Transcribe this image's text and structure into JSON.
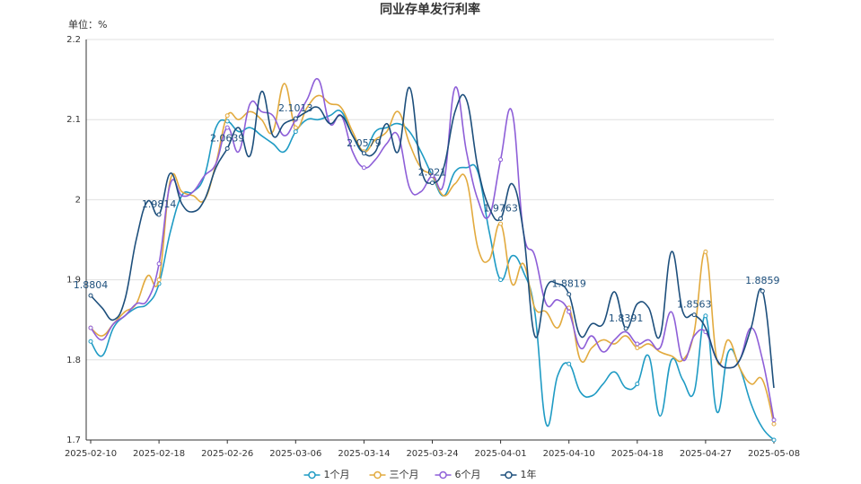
{
  "chart_data": {
    "type": "line",
    "title": "同业存单发行利率",
    "unit_label": "单位：%",
    "categories": [
      "2025-02-10",
      null,
      null,
      null,
      null,
      null,
      "2025-02-18",
      null,
      null,
      null,
      null,
      null,
      "2025-02-26",
      null,
      null,
      null,
      null,
      null,
      "2025-03-06",
      null,
      null,
      null,
      null,
      null,
      "2025-03-14",
      null,
      null,
      null,
      null,
      null,
      "2025-03-24",
      null,
      null,
      null,
      null,
      null,
      "2025-04-01",
      null,
      null,
      null,
      null,
      null,
      "2025-04-10",
      null,
      null,
      null,
      null,
      null,
      "2025-04-18",
      null,
      null,
      null,
      null,
      null,
      "2025-04-27",
      null,
      null,
      null,
      null,
      null,
      "2025-05-08"
    ],
    "ylim": [
      1.7,
      2.2
    ],
    "yticks": [
      1.7,
      1.8,
      1.9,
      2,
      2.1,
      2.2
    ],
    "grid": true,
    "smooth": true,
    "legend": "bottom",
    "series": [
      {
        "name": "1个月",
        "color": "#1f9bc4",
        "labels": false,
        "values": [
          1.823,
          1.805,
          1.84,
          1.855,
          1.865,
          1.87,
          1.895,
          1.96,
          2.005,
          2.01,
          2.03,
          2.09,
          2.098,
          2.085,
          2.09,
          2.08,
          2.07,
          2.06,
          2.085,
          2.1,
          2.1,
          2.105,
          2.11,
          2.08,
          2.06,
          2.085,
          2.09,
          2.095,
          2.085,
          2.06,
          2.03,
          2.005,
          2.035,
          2.04,
          2.035,
          1.96,
          1.9,
          1.93,
          1.91,
          1.86,
          1.72,
          1.78,
          1.795,
          1.76,
          1.755,
          1.77,
          1.785,
          1.765,
          1.77,
          1.805,
          1.73,
          1.8,
          1.775,
          1.76,
          1.855,
          1.735,
          1.81,
          1.79,
          1.745,
          1.715,
          1.7
        ]
      },
      {
        "name": "三个月",
        "color": "#e2aa3e",
        "labels": false,
        "values": [
          1.84,
          1.83,
          1.845,
          1.86,
          1.87,
          1.905,
          1.9,
          2.025,
          2.01,
          2.005,
          2.0,
          2.045,
          2.105,
          2.1,
          2.11,
          2.1,
          2.085,
          2.145,
          2.09,
          2.115,
          2.13,
          2.12,
          2.115,
          2.085,
          2.06,
          2.075,
          2.085,
          2.11,
          2.07,
          2.04,
          2.03,
          2.005,
          2.02,
          2.025,
          1.94,
          1.925,
          1.97,
          1.895,
          1.92,
          1.865,
          1.86,
          1.84,
          1.865,
          1.8,
          1.815,
          1.825,
          1.82,
          1.83,
          1.815,
          1.82,
          1.81,
          1.805,
          1.8,
          1.835,
          1.935,
          1.8,
          1.825,
          1.79,
          1.77,
          1.775,
          1.72
        ]
      },
      {
        "name": "6个月",
        "color": "#8e5fd8",
        "labels": false,
        "values": [
          1.84,
          1.825,
          1.845,
          1.855,
          1.87,
          1.875,
          1.92,
          2.02,
          2.005,
          2.01,
          2.03,
          2.045,
          2.09,
          2.06,
          2.12,
          2.11,
          2.105,
          2.08,
          2.1,
          2.125,
          2.15,
          2.095,
          2.105,
          2.06,
          2.04,
          2.05,
          2.07,
          2.08,
          2.015,
          2.01,
          2.03,
          2.02,
          2.14,
          2.06,
          2.0,
          1.98,
          2.05,
          2.11,
          1.96,
          1.93,
          1.87,
          1.875,
          1.86,
          1.815,
          1.83,
          1.81,
          1.825,
          1.835,
          1.82,
          1.825,
          1.815,
          1.86,
          1.8,
          1.83,
          1.835,
          1.8,
          1.79,
          1.8,
          1.84,
          1.8,
          1.725
        ]
      },
      {
        "name": "1年",
        "color": "#1d4f7c",
        "labels": true,
        "values": [
          1.8804,
          1.865,
          1.85,
          1.875,
          1.95,
          1.998,
          1.9814,
          2.033,
          1.995,
          1.985,
          2.0,
          2.04,
          2.0639,
          2.09,
          2.055,
          2.135,
          2.08,
          2.095,
          2.1013,
          2.11,
          2.115,
          2.095,
          2.105,
          2.08,
          2.0579,
          2.06,
          2.095,
          2.06,
          2.14,
          2.04,
          2.021,
          2.04,
          2.11,
          2.125,
          2.04,
          1.99,
          1.9763,
          2.02,
          1.96,
          1.83,
          1.89,
          1.895,
          1.8819,
          1.83,
          1.845,
          1.845,
          1.885,
          1.8391,
          1.87,
          1.865,
          1.83,
          1.935,
          1.86,
          1.8563,
          1.84,
          1.8,
          1.79,
          1.8,
          1.84,
          1.8859,
          1.765
        ]
      }
    ]
  }
}
